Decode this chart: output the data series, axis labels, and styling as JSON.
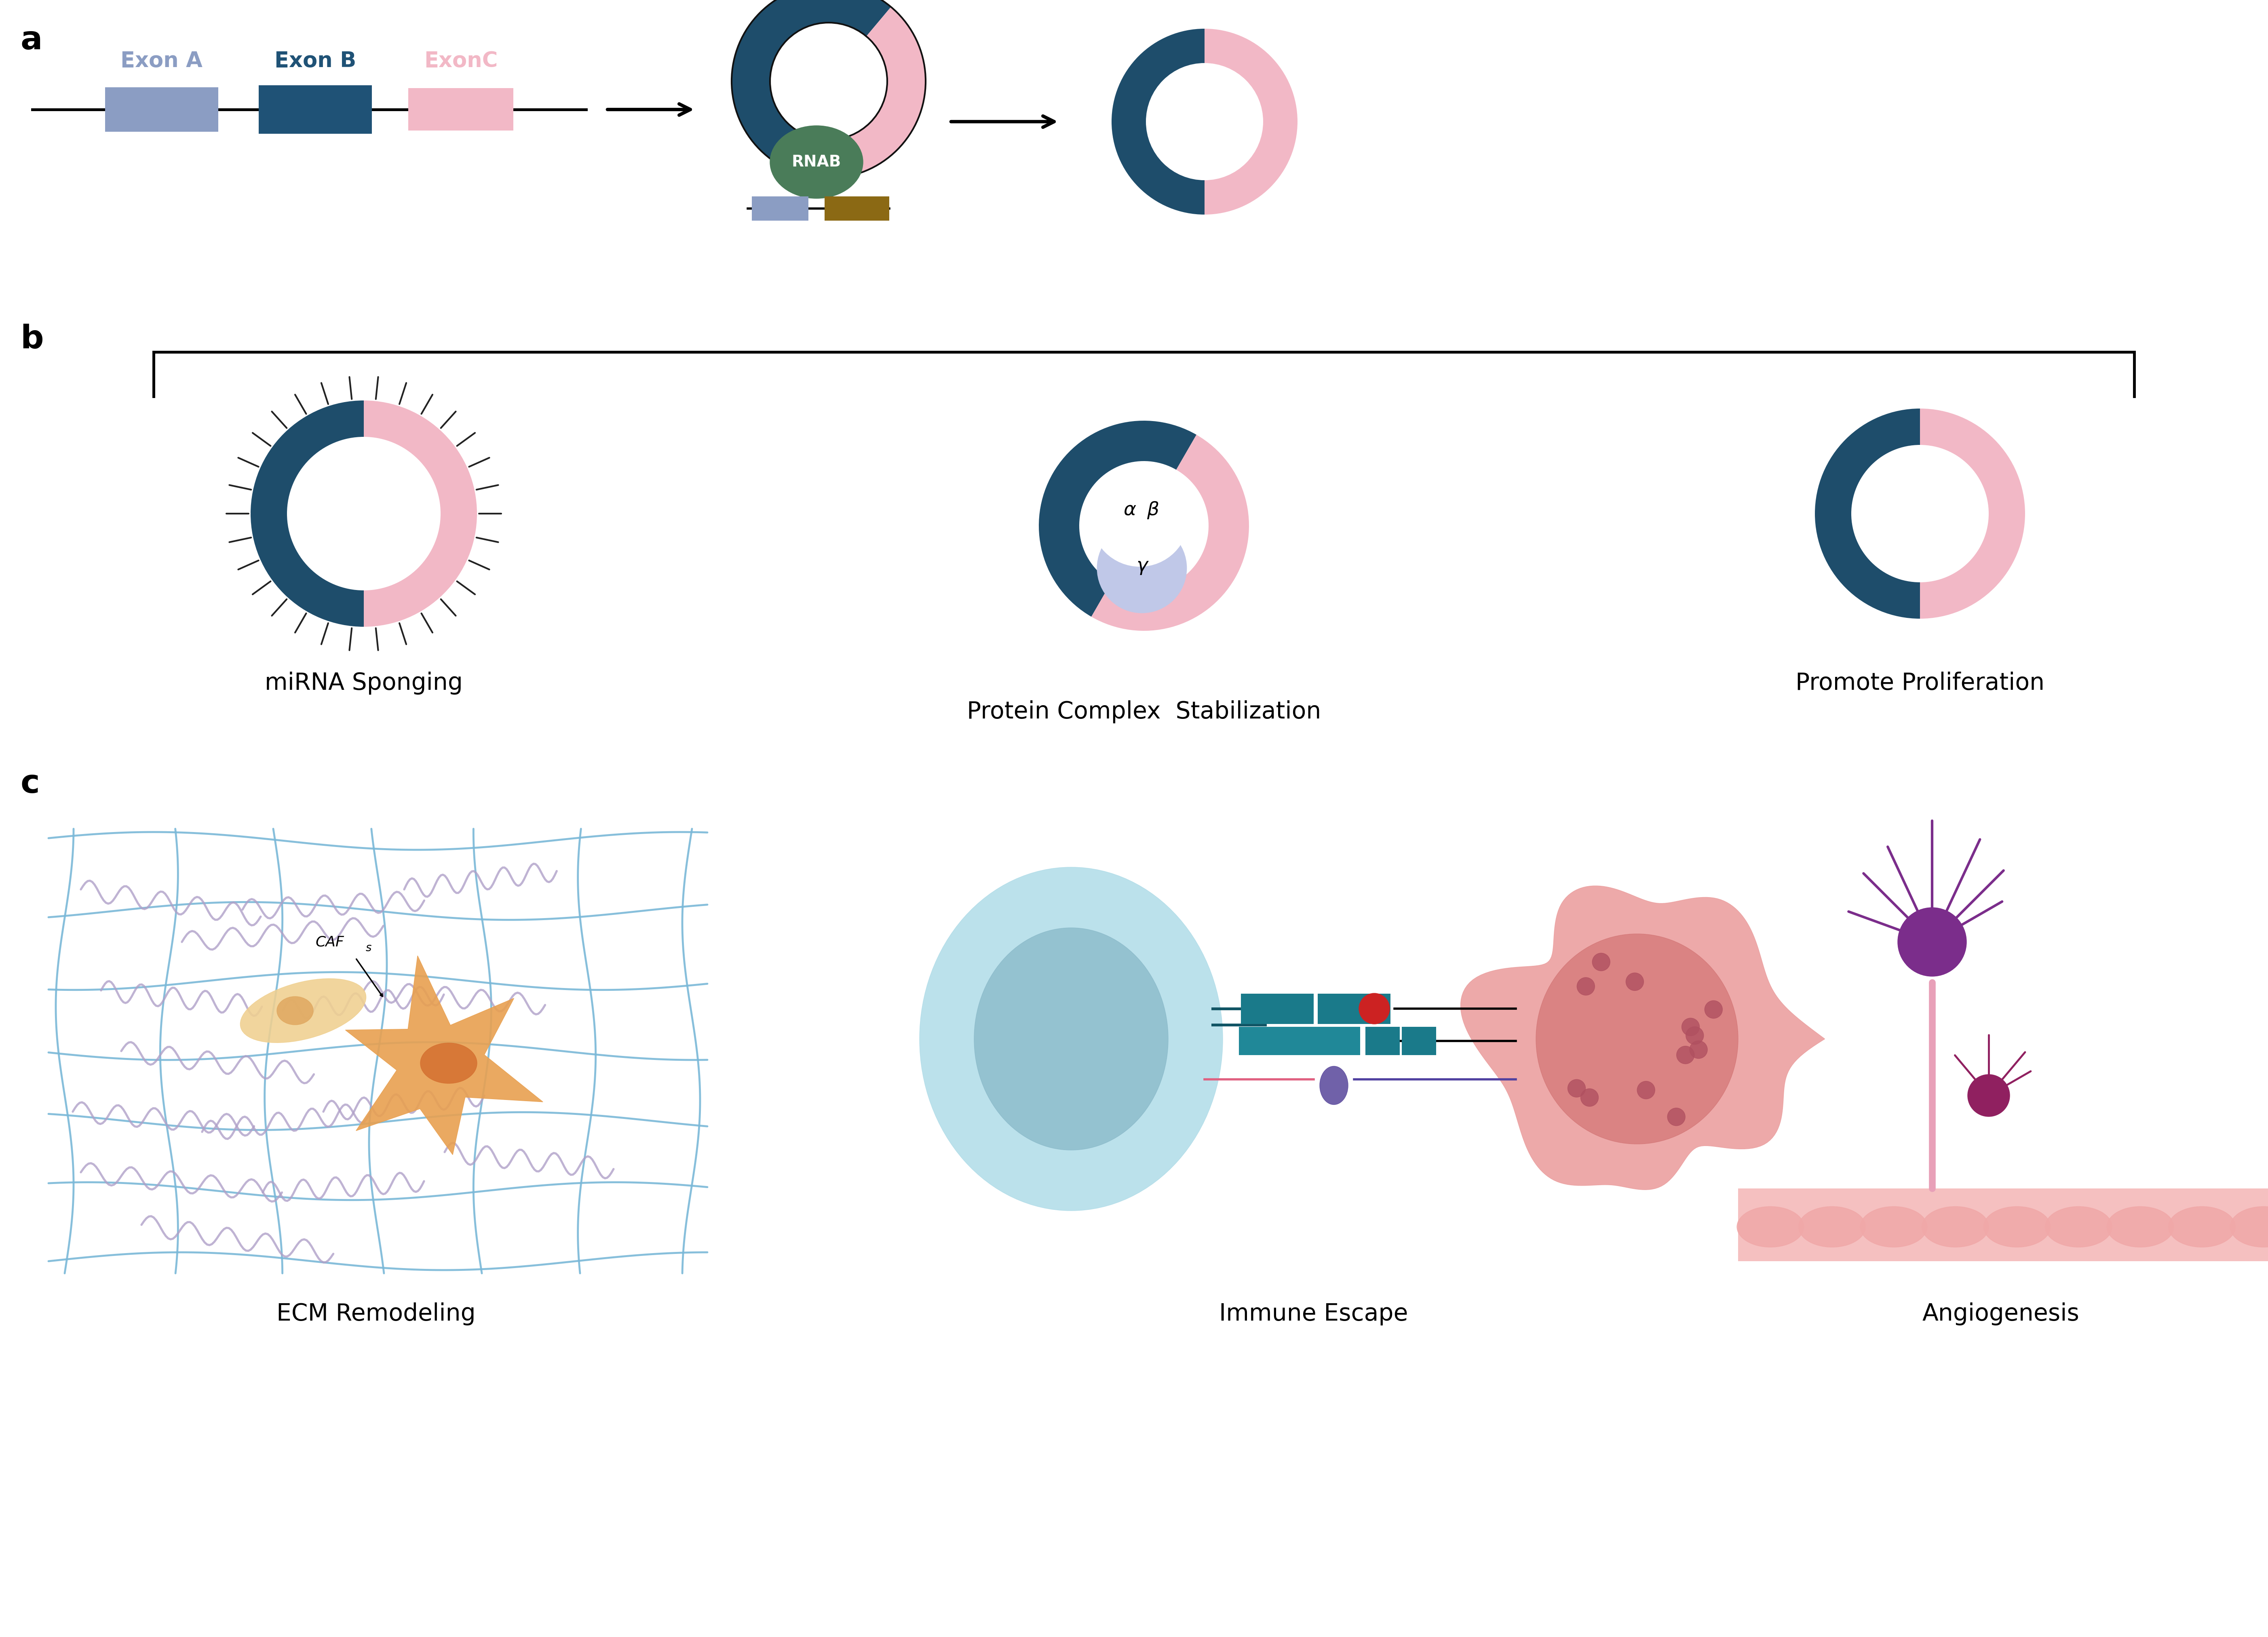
{
  "panel_a_label": "a",
  "panel_b_label": "b",
  "panel_c_label": "c",
  "exon_a_label": "Exon A",
  "exon_b_label": "Exon B",
  "exon_c_label": "ExonC",
  "exon_a_color": "#8B9DC3",
  "exon_b_color": "#1F5276",
  "exon_c_color": "#F2B8C6",
  "rnab_color": "#4A7C59",
  "rnab_label": "RNAB",
  "golden_color": "#8B6914",
  "dark_blue": "#1E4D6B",
  "pink": "#F2B8C6",
  "background": "#ffffff",
  "mirna_label": "miRNA Sponging",
  "protein_label": "Protein Complex  Stabilization",
  "proliferation_label": "Promote Proliferation",
  "ecm_label": "ECM Remodeling",
  "immune_label": "Immune Escape",
  "angio_label": "Angiogenesis",
  "label_fontsize": 42,
  "panel_label_fontsize": 58,
  "cafs_label": "CAF",
  "cafs_sub": "S",
  "alpha_label": "α",
  "beta_label": "β",
  "gamma_label": "γ"
}
